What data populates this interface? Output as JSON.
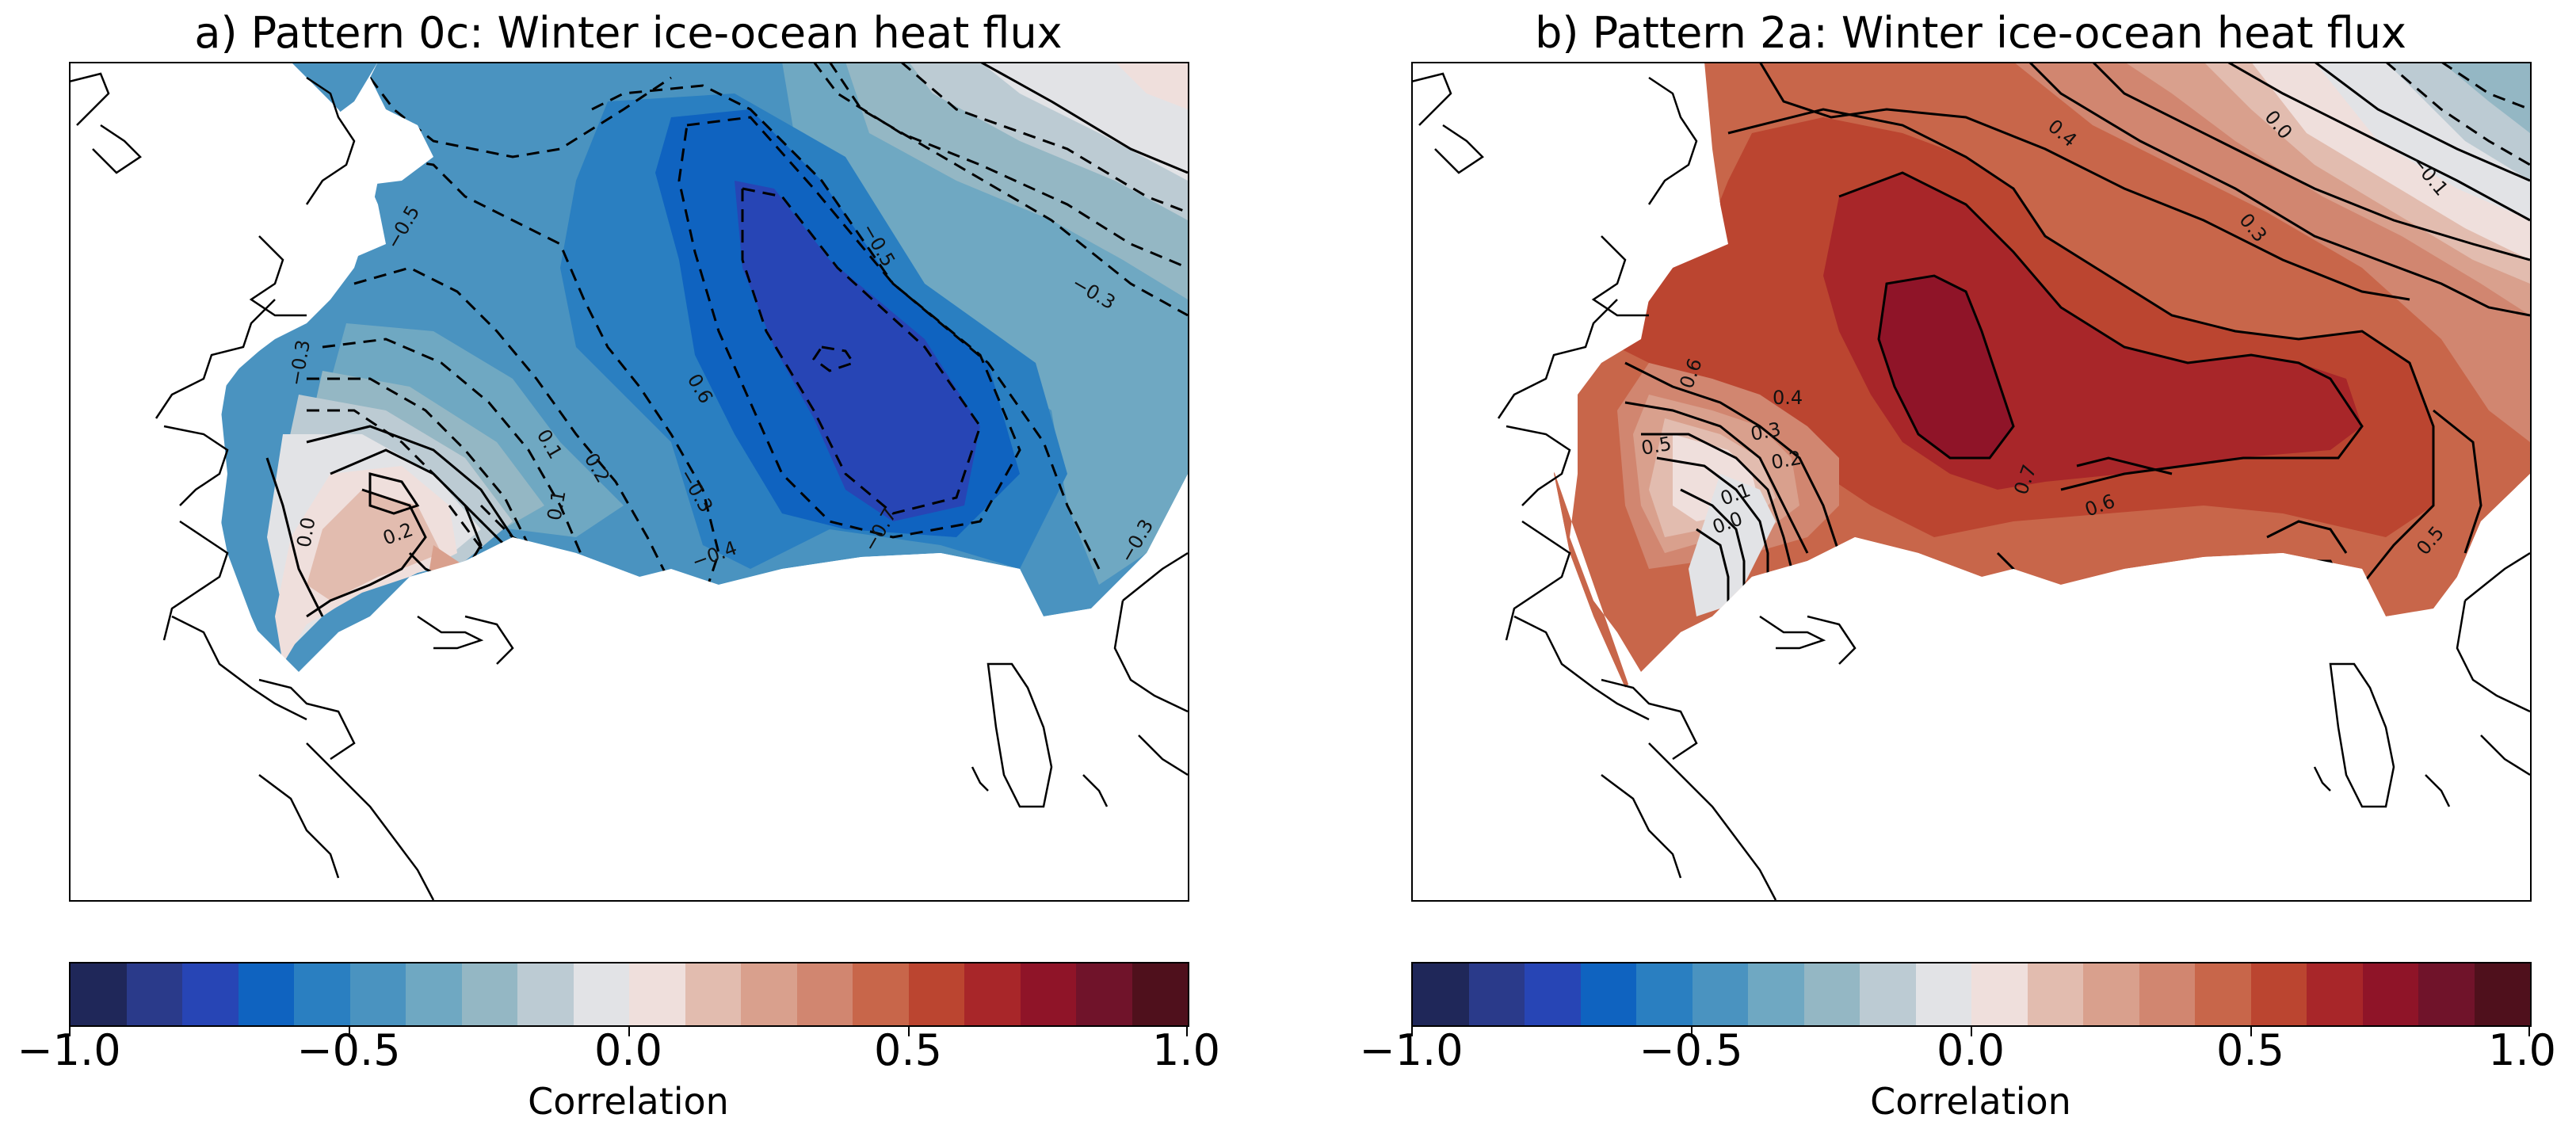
{
  "panels": [
    {
      "id": "a",
      "title": "a) Pattern 0c: Winter ice-ocean heat flux",
      "colorbar": {
        "ticks": [
          "−1.0",
          "−0.5",
          "0.0",
          "0.5",
          "1.0"
        ],
        "label": "Correlation"
      },
      "contour_labels": [
        "−0.5",
        "−0.3",
        "−0.3",
        "0.1",
        "0.2",
        "0.6",
        "−0.3",
        "−0.7",
        "−0.3",
        "−0.4",
        "0.1",
        "0.2",
        "0.0",
        "−0.5"
      ]
    },
    {
      "id": "b",
      "title": "b) Pattern 2a: Winter ice-ocean heat flux",
      "colorbar": {
        "ticks": [
          "−1.0",
          "−0.5",
          "0.0",
          "0.5",
          "1.0"
        ],
        "label": "Correlation"
      },
      "contour_labels": [
        "0.4",
        "0.0",
        "−0.1",
        "0.3",
        "0.6",
        "0.4",
        "0.5",
        "0.3",
        "0.2",
        "0.1",
        "0.0",
        "0.7",
        "0.6",
        "0.5"
      ]
    }
  ],
  "chart_data": {
    "type": "heatmap",
    "colorbar_levels": [
      -1.0,
      -0.9,
      -0.8,
      -0.7,
      -0.6,
      -0.5,
      -0.4,
      -0.3,
      -0.2,
      -0.1,
      0.0,
      0.1,
      0.2,
      0.3,
      0.4,
      0.5,
      0.6,
      0.7,
      0.8,
      0.9,
      1.0
    ],
    "colorbar_colors": [
      "#1f2759",
      "#2a3a8a",
      "#2745b5",
      "#0f63c0",
      "#2a7fc1",
      "#4a93c0",
      "#6fa8c2",
      "#94b7c4",
      "#bccbd3",
      "#e2e3e6",
      "#efdfdc",
      "#e2bcaf",
      "#d9a08d",
      "#d18670",
      "#c8664a",
      "#bb4530",
      "#a82629",
      "#8f1428",
      "#70132a",
      "#4f101c"
    ],
    "colorbar_range": [
      -1.0,
      1.0
    ],
    "colorbar_label": "Correlation"
  }
}
